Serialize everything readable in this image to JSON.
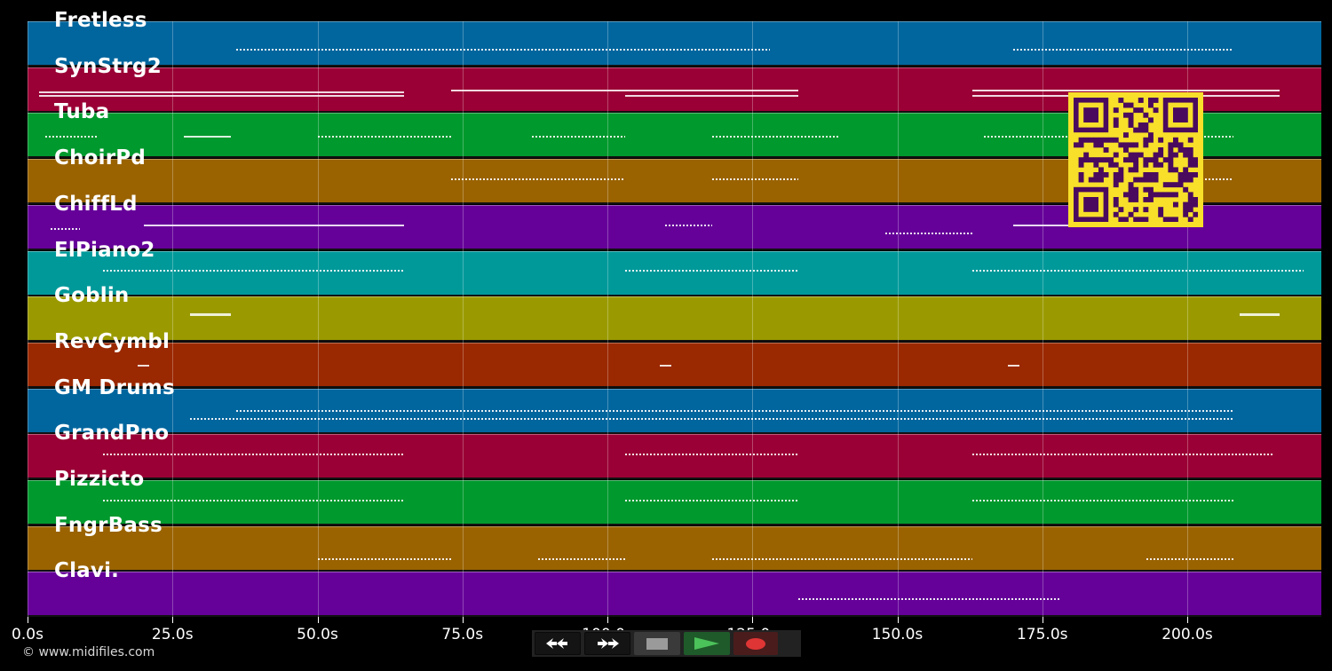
{
  "tracks": [
    {
      "name": "Fretless",
      "color": "#01669e"
    },
    {
      "name": "SynStrg2",
      "color": "#9a0035"
    },
    {
      "name": "Tuba",
      "color": "#00992d"
    },
    {
      "name": "ChoirPd",
      "color": "#9a6300"
    },
    {
      "name": "ChiffLd",
      "color": "#650099"
    },
    {
      "name": "ElPiano2",
      "color": "#00999a"
    },
    {
      "name": "Goblin",
      "color": "#9a9a00"
    },
    {
      "name": "RevCymbl",
      "color": "#9a2800"
    },
    {
      "name": "GM Drums",
      "color": "#01669e"
    },
    {
      "name": "GrandPno",
      "color": "#9a0035"
    },
    {
      "name": "Pizzicto",
      "color": "#00992d"
    },
    {
      "name": "FngrBass",
      "color": "#9a6300"
    },
    {
      "name": "Clavi.",
      "color": "#650099"
    }
  ],
  "time_axis": {
    "ticks": [
      "0.0s",
      "25.0s",
      "50.0s",
      "75.0s",
      "100.0s",
      "125.0s",
      "150.0s",
      "175.0s",
      "200.0s"
    ],
    "seconds_per_tick": 25
  },
  "transport": {
    "rewind": "rewind-icon",
    "fast_forward": "fast-forward-icon",
    "stop": "stop-icon",
    "play": "play-icon",
    "record": "record-icon",
    "colors": {
      "play": "#4cc25a",
      "record": "#e03535",
      "stop": "#9a9a9a"
    }
  },
  "footer": {
    "copyright": "© www.midifiles.com"
  },
  "qr_code": {
    "fg": "#4a0a5e",
    "bg": "#f7df2a"
  }
}
